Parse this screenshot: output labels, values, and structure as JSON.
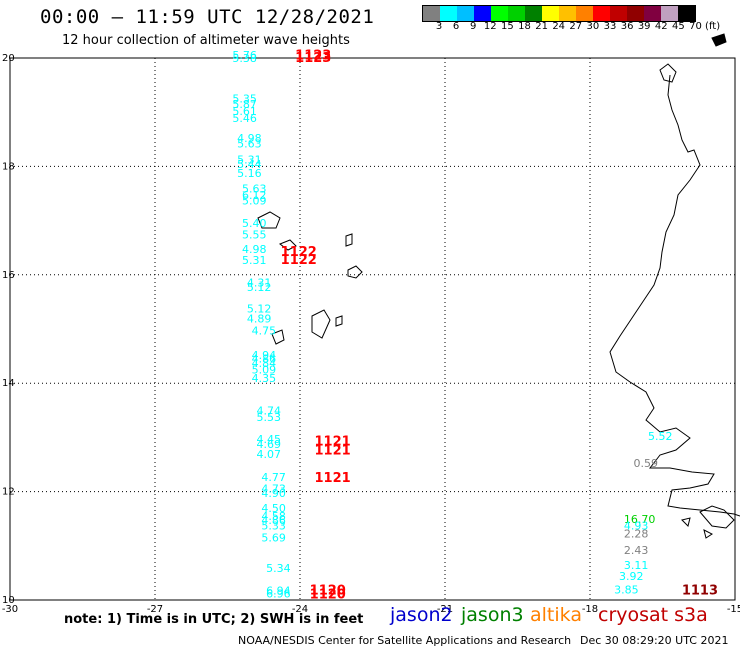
{
  "header": {
    "title": "00:00 – 11:59 UTC 12/28/2021",
    "subtitle": "12 hour collection of altimeter wave heights"
  },
  "legend": {
    "colors": [
      "#808080",
      "#00ffff",
      "#00bfff",
      "#0000ff",
      "#00ff00",
      "#00d000",
      "#008000",
      "#ffff00",
      "#ffc000",
      "#ff8000",
      "#ff0000",
      "#c00000",
      "#900000",
      "#800040",
      "#c0a0c0",
      "#000000"
    ],
    "labels": [
      "3",
      "6",
      "9",
      "12",
      "15",
      "18",
      "21",
      "24",
      "27",
      "30",
      "33",
      "36",
      "39",
      "42",
      "45",
      "70",
      "(ft)"
    ]
  },
  "chart_data": {
    "type": "scatter",
    "xlim": [
      -30,
      -15
    ],
    "ylim": [
      10,
      20
    ],
    "x_ticks": [
      "-30",
      "-27",
      "-24",
      "-21",
      "-18",
      "-15"
    ],
    "y_ticks": [
      "10",
      "12",
      "14",
      "16",
      "18",
      "20"
    ],
    "grid": true,
    "swh_labels": [
      {
        "lon": -25.4,
        "lat": 19.98,
        "text": "5.76",
        "color": "#00ffff"
      },
      {
        "lon": -25.4,
        "lat": 19.93,
        "text": "5.38",
        "color": "#00ffff"
      },
      {
        "lon": -25.4,
        "lat": 19.18,
        "text": "5.35",
        "color": "#00ffff"
      },
      {
        "lon": -25.4,
        "lat": 19.08,
        "text": "5.87",
        "color": "#00ffff"
      },
      {
        "lon": -25.4,
        "lat": 18.95,
        "text": "5.61",
        "color": "#00ffff"
      },
      {
        "lon": -25.4,
        "lat": 18.82,
        "text": "5.46",
        "color": "#00ffff"
      },
      {
        "lon": -25.3,
        "lat": 18.45,
        "text": "4.98",
        "color": "#00ffff"
      },
      {
        "lon": -25.3,
        "lat": 18.35,
        "text": "5.63",
        "color": "#00ffff"
      },
      {
        "lon": -25.3,
        "lat": 18.05,
        "text": "5.31",
        "color": "#00ffff"
      },
      {
        "lon": -25.3,
        "lat": 17.97,
        "text": "5.44",
        "color": "#00ffff"
      },
      {
        "lon": -25.3,
        "lat": 17.8,
        "text": "5.16",
        "color": "#00ffff"
      },
      {
        "lon": -25.2,
        "lat": 17.52,
        "text": "5.63",
        "color": "#00ffff"
      },
      {
        "lon": -25.2,
        "lat": 17.4,
        "text": "6.12",
        "color": "#00ffff"
      },
      {
        "lon": -25.2,
        "lat": 17.3,
        "text": "5.09",
        "color": "#00ffff"
      },
      {
        "lon": -25.2,
        "lat": 16.88,
        "text": "5.40",
        "color": "#00ffff"
      },
      {
        "lon": -25.2,
        "lat": 16.67,
        "text": "5.55",
        "color": "#00ffff"
      },
      {
        "lon": -25.2,
        "lat": 16.4,
        "text": "4.98",
        "color": "#00ffff"
      },
      {
        "lon": -25.2,
        "lat": 16.2,
        "text": "5.31",
        "color": "#00ffff"
      },
      {
        "lon": -25.1,
        "lat": 15.78,
        "text": "4.31",
        "color": "#00ffff"
      },
      {
        "lon": -25.1,
        "lat": 15.7,
        "text": "5.12",
        "color": "#00ffff"
      },
      {
        "lon": -25.1,
        "lat": 15.3,
        "text": "5.12",
        "color": "#00ffff"
      },
      {
        "lon": -25.1,
        "lat": 15.12,
        "text": "4.89",
        "color": "#00ffff"
      },
      {
        "lon": -25.0,
        "lat": 14.9,
        "text": "4.75",
        "color": "#00ffff"
      },
      {
        "lon": -25.0,
        "lat": 14.45,
        "text": "4.94",
        "color": "#00ffff"
      },
      {
        "lon": -25.0,
        "lat": 14.38,
        "text": "4.86",
        "color": "#00ffff"
      },
      {
        "lon": -25.0,
        "lat": 14.3,
        "text": "4.84",
        "color": "#00ffff"
      },
      {
        "lon": -25.0,
        "lat": 14.18,
        "text": "5.09",
        "color": "#00ffff"
      },
      {
        "lon": -25.0,
        "lat": 14.02,
        "text": "4.35",
        "color": "#00ffff"
      },
      {
        "lon": -24.9,
        "lat": 13.42,
        "text": "4.74",
        "color": "#00ffff"
      },
      {
        "lon": -24.9,
        "lat": 13.3,
        "text": "5.53",
        "color": "#00ffff"
      },
      {
        "lon": -24.9,
        "lat": 12.9,
        "text": "4.45",
        "color": "#00ffff"
      },
      {
        "lon": -24.9,
        "lat": 12.8,
        "text": "4.69",
        "color": "#00ffff"
      },
      {
        "lon": -24.9,
        "lat": 12.62,
        "text": "4.07",
        "color": "#00ffff"
      },
      {
        "lon": -24.8,
        "lat": 12.2,
        "text": "4.77",
        "color": "#00ffff"
      },
      {
        "lon": -24.8,
        "lat": 11.98,
        "text": "4.73",
        "color": "#00ffff"
      },
      {
        "lon": -24.8,
        "lat": 11.9,
        "text": "4.90",
        "color": "#00ffff"
      },
      {
        "lon": -24.8,
        "lat": 11.62,
        "text": "4.50",
        "color": "#00ffff"
      },
      {
        "lon": -24.8,
        "lat": 11.48,
        "text": "4.58",
        "color": "#00ffff"
      },
      {
        "lon": -24.8,
        "lat": 11.4,
        "text": "4.86",
        "color": "#00ffff"
      },
      {
        "lon": -24.8,
        "lat": 11.3,
        "text": "5.33",
        "color": "#00ffff"
      },
      {
        "lon": -24.8,
        "lat": 11.08,
        "text": "5.69",
        "color": "#00ffff"
      },
      {
        "lon": -24.7,
        "lat": 10.52,
        "text": "5.34",
        "color": "#00ffff"
      },
      {
        "lon": -24.7,
        "lat": 10.1,
        "text": "6.94",
        "color": "#00ffff"
      },
      {
        "lon": -24.7,
        "lat": 10.05,
        "text": "6.96",
        "color": "#00ffff"
      },
      {
        "lon": -16.8,
        "lat": 12.95,
        "text": "5.52",
        "color": "#00ffff"
      },
      {
        "lon": -17.1,
        "lat": 12.45,
        "text": "0.59",
        "color": "#808080"
      },
      {
        "lon": -17.3,
        "lat": 11.42,
        "text": "16.70",
        "color": "#00d000"
      },
      {
        "lon": -17.3,
        "lat": 11.3,
        "text": "4.93",
        "color": "#00ffff"
      },
      {
        "lon": -17.3,
        "lat": 11.15,
        "text": "2.28",
        "color": "#808080"
      },
      {
        "lon": -17.3,
        "lat": 10.85,
        "text": "2.43",
        "color": "#808080"
      },
      {
        "lon": -17.3,
        "lat": 10.57,
        "text": "3.11",
        "color": "#00ffff"
      },
      {
        "lon": -17.4,
        "lat": 10.37,
        "text": "3.92",
        "color": "#00ffff"
      },
      {
        "lon": -17.5,
        "lat": 10.12,
        "text": "3.85",
        "color": "#00ffff"
      }
    ],
    "time_labels": [
      {
        "lon": -24.1,
        "lat": 19.97,
        "text": "1123",
        "color": "#ff0000"
      },
      {
        "lon": -24.1,
        "lat": 19.93,
        "text": "1123",
        "color": "#ff0000"
      },
      {
        "lon": -24.4,
        "lat": 16.35,
        "text": "1122",
        "color": "#ff0000"
      },
      {
        "lon": -24.4,
        "lat": 16.2,
        "text": "1122",
        "color": "#ff0000"
      },
      {
        "lon": -23.7,
        "lat": 12.85,
        "text": "1121",
        "color": "#ff0000"
      },
      {
        "lon": -23.7,
        "lat": 12.68,
        "text": "1121",
        "color": "#ff0000"
      },
      {
        "lon": -23.7,
        "lat": 12.18,
        "text": "1121",
        "color": "#ff0000"
      },
      {
        "lon": -23.8,
        "lat": 10.1,
        "text": "1120",
        "color": "#ff0000"
      },
      {
        "lon": -23.8,
        "lat": 10.03,
        "text": "1120",
        "color": "#ff0000"
      },
      {
        "lon": -16.1,
        "lat": 10.1,
        "text": "1113",
        "color": "#900000"
      }
    ]
  },
  "footer": {
    "note": "note: 1) Time is in UTC; 2) SWH is in feet",
    "satellites": [
      {
        "name": "jason2",
        "color": "#0000cc"
      },
      {
        "name": "jason3",
        "color": "#008000"
      },
      {
        "name": "altika",
        "color": "#ff8000"
      },
      {
        "name": "cryosat s3a",
        "color": "#c00000"
      }
    ],
    "credit": "NOAA/NESDIS Center for Satellite Applications and Research",
    "timestamp": "Dec 30 08:29:20 UTC 2021"
  }
}
